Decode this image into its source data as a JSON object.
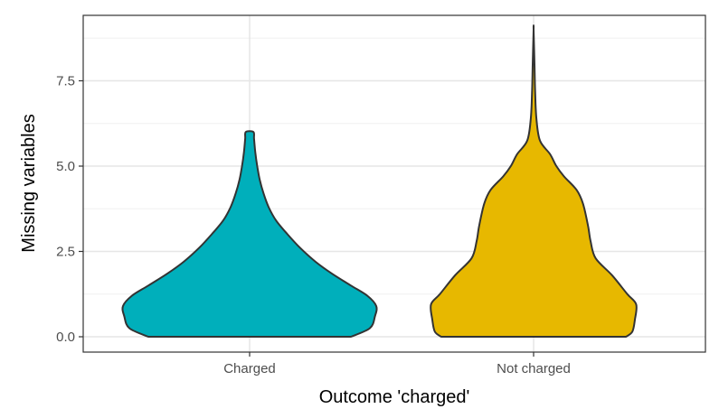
{
  "chart_data": {
    "type": "violin",
    "title": "",
    "xlabel": "Outcome 'charged'",
    "ylabel": "Missing variables",
    "ylim": [
      -0.2,
      9.6
    ],
    "yticks": [
      0,
      2.5,
      5,
      7.5
    ],
    "ytick_labels": [
      "0.0",
      "2.5",
      "5.0",
      "7.5"
    ],
    "grid": true,
    "categories": [
      "Charged",
      "Not charged"
    ],
    "series": [
      {
        "name": "Charged",
        "color": "#00AFBB",
        "profile_y": [
          0,
          0.25,
          0.6,
          0.9,
          1.2,
          1.5,
          1.85,
          2.2,
          2.6,
          3.0,
          3.4,
          3.8,
          4.2,
          4.6,
          5.0,
          5.4,
          5.8,
          6.0
        ],
        "profile_width": [
          0.8,
          0.95,
          0.99,
          1.0,
          0.93,
          0.8,
          0.65,
          0.52,
          0.4,
          0.3,
          0.21,
          0.15,
          0.11,
          0.08,
          0.06,
          0.045,
          0.035,
          0.03
        ]
      },
      {
        "name": "Not charged",
        "color": "#E7B800",
        "profile_y": [
          0,
          0.15,
          0.5,
          0.95,
          1.25,
          1.8,
          2.3,
          2.8,
          3.25,
          3.9,
          4.3,
          4.7,
          5.0,
          5.35,
          5.75,
          6.4,
          7.2,
          8.0,
          9.0
        ],
        "profile_width": [
          0.73,
          0.78,
          0.8,
          0.81,
          0.74,
          0.62,
          0.49,
          0.45,
          0.43,
          0.39,
          0.34,
          0.24,
          0.18,
          0.13,
          0.05,
          0.022,
          0.012,
          0.007,
          0.0
        ]
      }
    ]
  }
}
